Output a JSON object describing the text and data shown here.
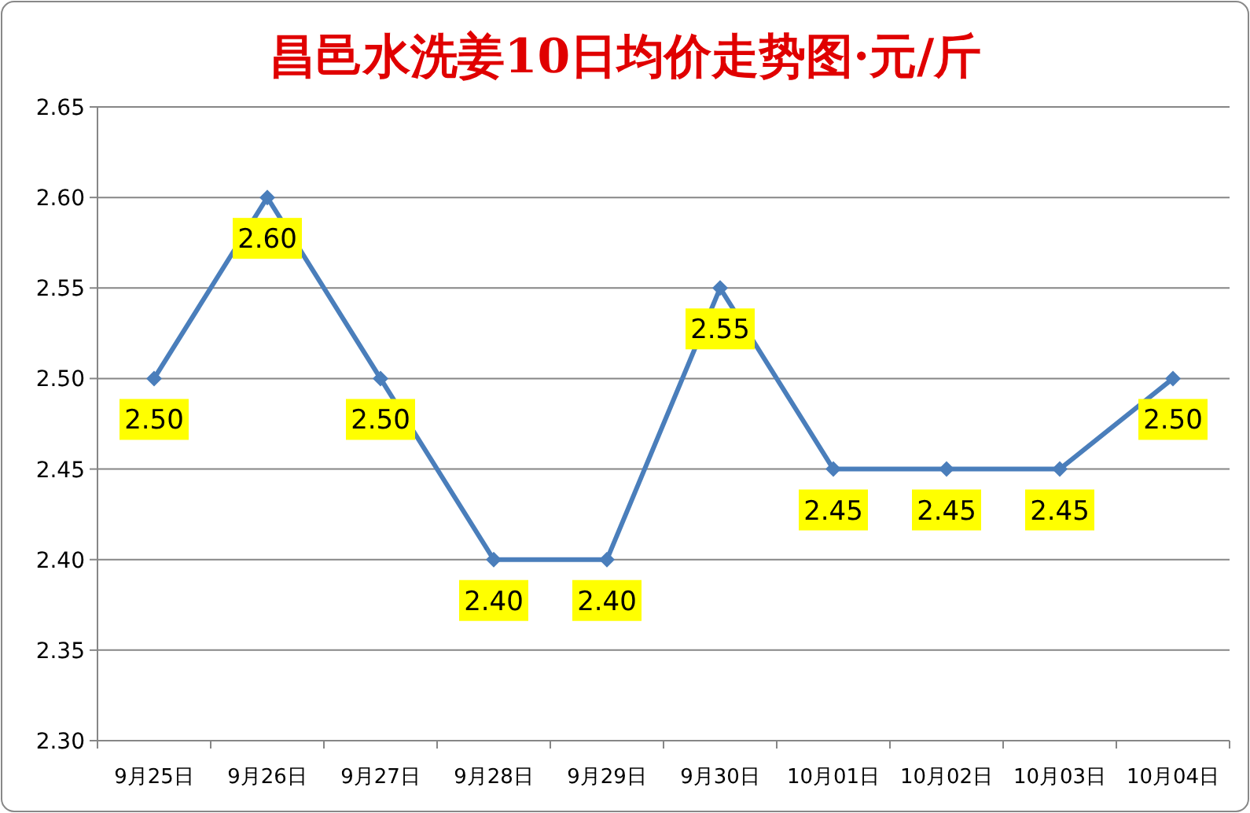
{
  "chart_data": {
    "type": "line",
    "title": "昌邑水洗姜10日均价走势图·元/斤",
    "categories": [
      "9月25日",
      "9月26日",
      "9月27日",
      "9月28日",
      "9月29日",
      "9月30日",
      "10月01日",
      "10月02日",
      "10月03日",
      "10月04日"
    ],
    "values": [
      2.5,
      2.6,
      2.5,
      2.4,
      2.4,
      2.55,
      2.45,
      2.45,
      2.45,
      2.5
    ],
    "color": "#4a7ebb",
    "ylim": [
      2.3,
      2.65
    ],
    "yticks": [
      "2.30",
      "2.35",
      "2.40",
      "2.45",
      "2.50",
      "2.55",
      "2.60",
      "2.65"
    ],
    "value_labels": [
      "2.50",
      "2.60",
      "2.50",
      "2.40",
      "2.40",
      "2.55",
      "2.45",
      "2.45",
      "2.45",
      "2.50"
    ],
    "grid": "y",
    "marker": "diamond",
    "line_style": "solid"
  }
}
